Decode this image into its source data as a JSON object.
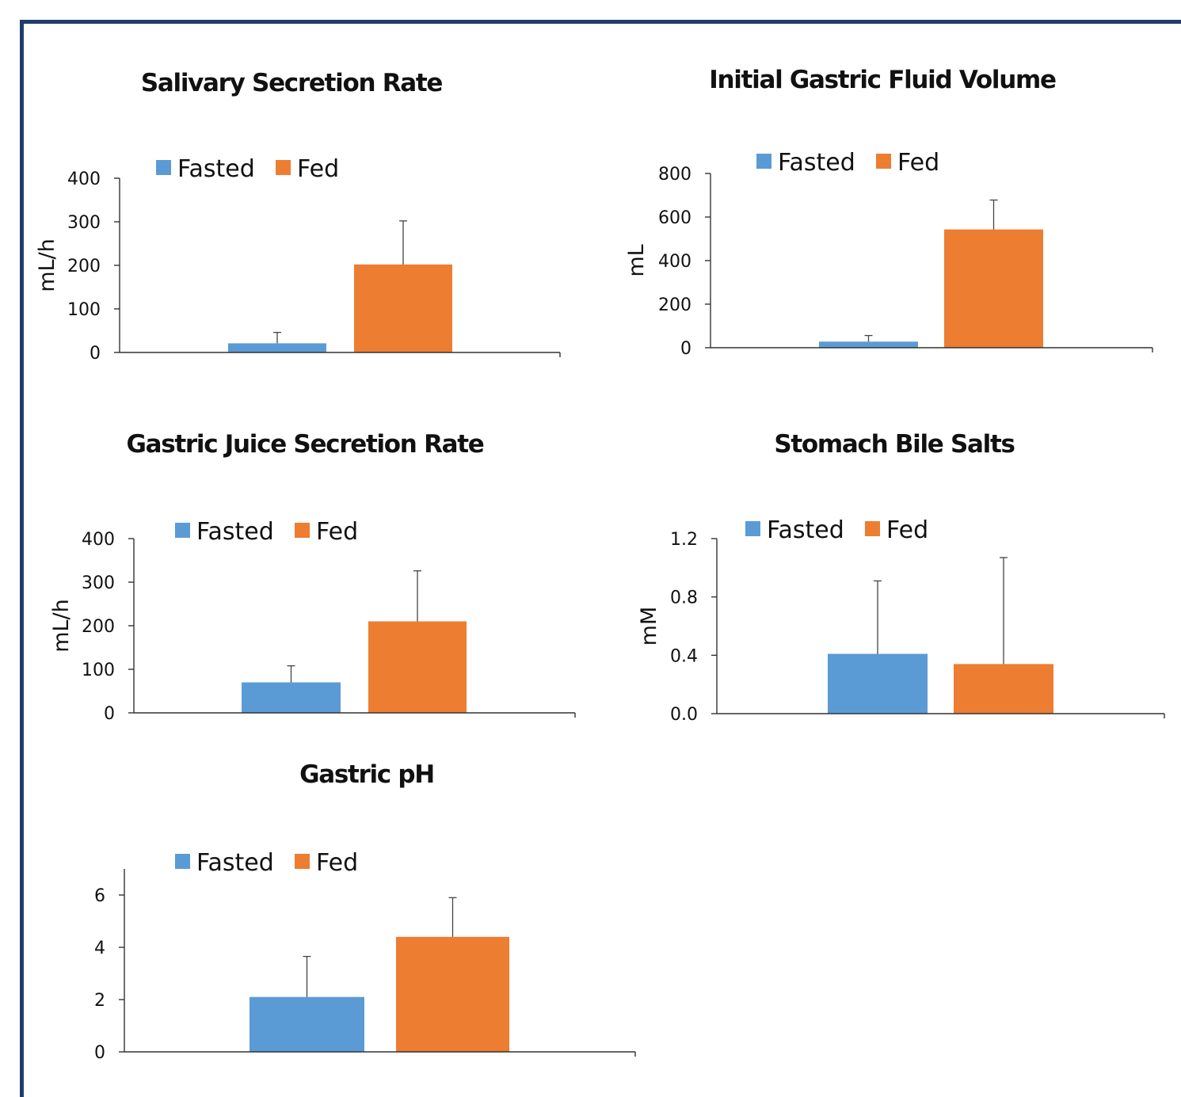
{
  "legend": {
    "fasted": "Fasted",
    "fed": "Fed"
  },
  "colors": {
    "fasted": "#5b9bd5",
    "fed": "#ed7d31",
    "axis": "#333333",
    "frame": "#1f3d6b"
  },
  "chart_data": [
    {
      "type": "bar",
      "title": "Salivary Secretion Rate",
      "ylabel": "mL/h",
      "ylim": [
        0,
        400
      ],
      "yticks": [
        "0",
        "100",
        "200",
        "300",
        "400"
      ],
      "categories": [
        "Fasted",
        "Fed"
      ],
      "values": [
        21,
        202
      ],
      "errors": [
        25,
        100
      ]
    },
    {
      "type": "bar",
      "title": "Initial Gastric Fluid Volume",
      "ylabel": "mL",
      "ylim": [
        0,
        800
      ],
      "yticks": [
        "0",
        "200",
        "400",
        "600",
        "800"
      ],
      "categories": [
        "Fasted",
        "Fed"
      ],
      "values": [
        28,
        543
      ],
      "errors": [
        28,
        135
      ]
    },
    {
      "type": "bar",
      "title": "Gastric Juice Secretion Rate",
      "ylabel": "mL/h",
      "ylim": [
        0,
        400
      ],
      "yticks": [
        "0",
        "100",
        "200",
        "300",
        "400"
      ],
      "categories": [
        "Fasted",
        "Fed"
      ],
      "values": [
        70,
        210
      ],
      "errors": [
        38,
        116
      ]
    },
    {
      "type": "bar",
      "title": "Stomach Bile Salts",
      "ylabel": "mM",
      "ylim": [
        0,
        1.2
      ],
      "yticks": [
        "0.0",
        "0.4",
        "0.8",
        "1.2"
      ],
      "categories": [
        "Fasted",
        "Fed"
      ],
      "values": [
        0.41,
        0.34
      ],
      "errors": [
        0.5,
        0.73
      ]
    },
    {
      "type": "bar",
      "title": "Gastric pH",
      "ylabel": "",
      "ylim": [
        0,
        7
      ],
      "yticks": [
        "0",
        "2",
        "4",
        "6"
      ],
      "categories": [
        "Fasted",
        "Fed"
      ],
      "values": [
        2.1,
        4.4
      ],
      "errors": [
        1.55,
        1.5
      ]
    }
  ]
}
